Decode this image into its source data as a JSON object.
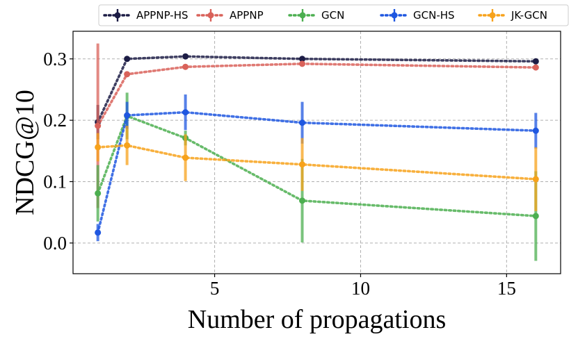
{
  "chart_data": {
    "type": "line",
    "title": "",
    "xlabel": "Number of propagations",
    "ylabel": "NDCG@10",
    "xlim": [
      0.15,
      16.85
    ],
    "ylim": [
      -0.05,
      0.345
    ],
    "x": [
      1,
      2,
      4,
      8,
      16
    ],
    "xticks": [
      5,
      10,
      15
    ],
    "xtick_labels": [
      "5",
      "10",
      "15"
    ],
    "yticks": [
      0.0,
      0.1,
      0.2,
      0.3
    ],
    "ytick_labels": [
      "0.0",
      "0.1",
      "0.2",
      "0.3"
    ],
    "grid": true,
    "legend_position": "top (above plot, single row)",
    "series": [
      {
        "name": "APPNP-HS",
        "color": "#1c1c45",
        "values": [
          0.197,
          0.3,
          0.304,
          0.3,
          0.296
        ],
        "errors": [
          0.028,
          0.003,
          0.003,
          0.003,
          0.003
        ]
      },
      {
        "name": "APPNP",
        "color": "#d9625a",
        "values": [
          0.191,
          0.275,
          0.287,
          0.292,
          0.286
        ],
        "errors": [
          0.134,
          0.004,
          0.004,
          0.004,
          0.004
        ]
      },
      {
        "name": "GCN",
        "color": "#4caf50",
        "values": [
          0.081,
          0.207,
          0.171,
          0.069,
          0.044
        ],
        "errors": [
          0.046,
          0.038,
          0.012,
          0.068,
          0.073
        ]
      },
      {
        "name": "GCN-HS",
        "color": "#1f57e0",
        "values": [
          0.017,
          0.208,
          0.213,
          0.196,
          0.183
        ],
        "errors": [
          0.014,
          0.022,
          0.029,
          0.034,
          0.029
        ]
      },
      {
        "name": "JK-GCN",
        "color": "#f7a21b",
        "values": [
          0.156,
          0.159,
          0.139,
          0.128,
          0.104
        ],
        "errors": [
          0.023,
          0.032,
          0.038,
          0.043,
          0.052
        ]
      }
    ]
  }
}
